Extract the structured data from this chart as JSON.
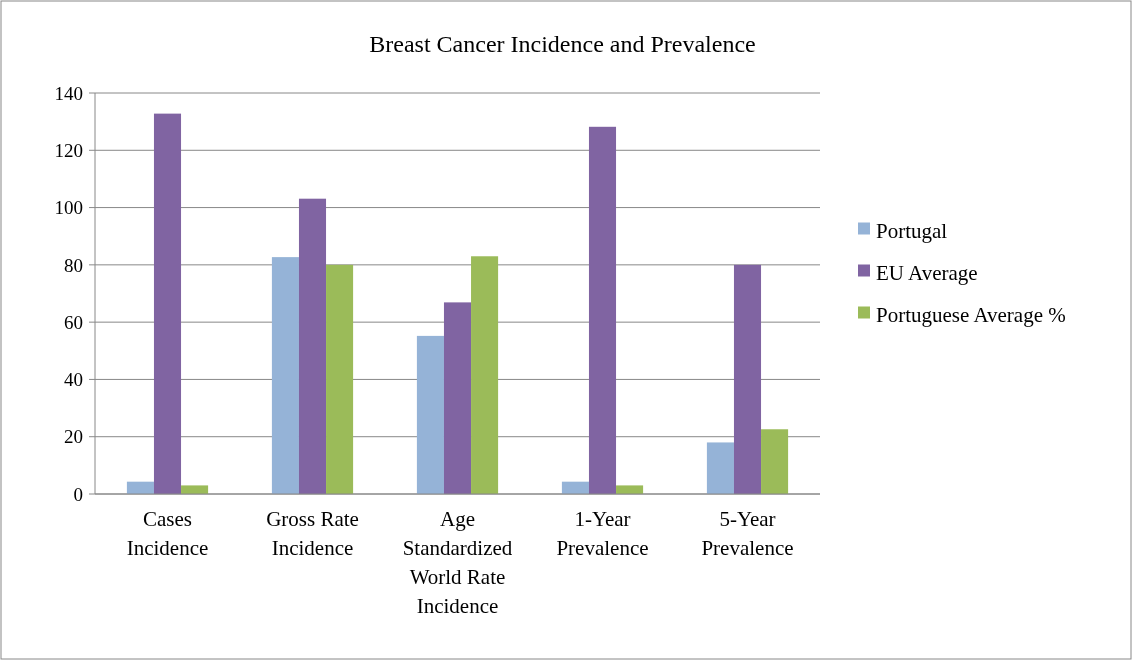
{
  "chart_data": {
    "type": "bar",
    "title": "Breast Cancer Incidence and Prevalence",
    "categories": [
      "Cases Incidence",
      "Gross Rate Incidence",
      "Age Standardized World Rate Incidence",
      "1-Year Prevalence",
      "5-Year Prevalence"
    ],
    "series": [
      {
        "name": "Portugal",
        "color": "#95b3d7",
        "values": [
          4.3,
          82.7,
          55.2,
          4.3,
          18
        ]
      },
      {
        "name": "EU Average",
        "color": "#8064a2",
        "values": [
          132.8,
          103.1,
          66.9,
          128.2,
          80
        ]
      },
      {
        "name": "Portuguese Average %",
        "color": "#9bbb59",
        "values": [
          3,
          80,
          83,
          3,
          22.6
        ]
      }
    ],
    "ylim": [
      0,
      140
    ],
    "yticks": [
      0,
      20,
      40,
      60,
      80,
      100,
      120,
      140
    ],
    "grid": "y",
    "legend": "right"
  }
}
